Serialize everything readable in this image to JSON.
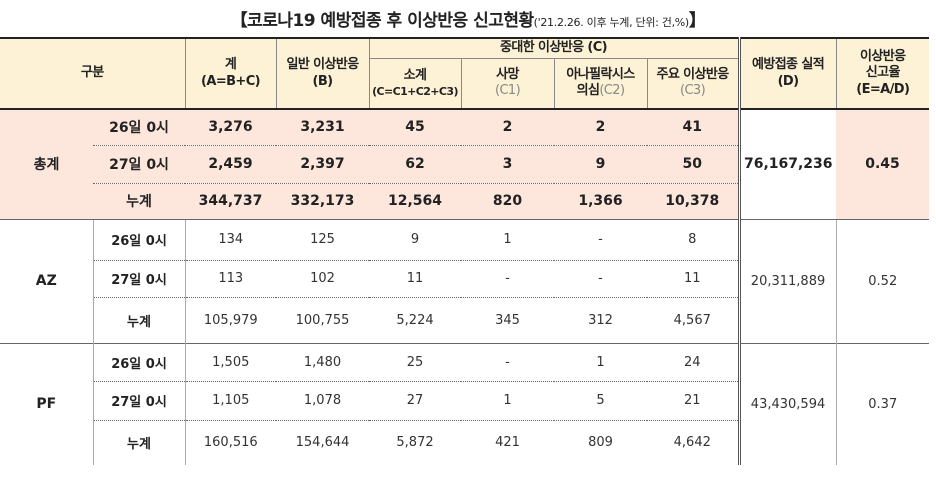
{
  "title": {
    "main": "【코로나19 예방접종 후 이상반응 신고현황",
    "sub": "('21.2.26. 이후 누계, 단위: 건,%)",
    "close": "】"
  },
  "headers": {
    "category": "구분",
    "total": "계",
    "total_sub": "(A=B+C)",
    "general": "일반 이상반응",
    "general_sub": "(B)",
    "serious": "중대한 이상반응 (C)",
    "subtotal": "소계",
    "subtotal_formula": "(C=C1+C2+C3)",
    "death": "사망",
    "death_sub": "(C1)",
    "anaphylaxis": "아나필락시스",
    "anaphylaxis_line2": "의심",
    "anaphylaxis_sub": "(C2)",
    "major": "주요 이상반응",
    "major_sub": "(C3)",
    "vaccinations": "예방접종 실적",
    "vaccinations_sub": "(D)",
    "rate": "이상반응",
    "rate_line2": "신고율",
    "rate_sub": "(E=A/D)"
  },
  "groups": [
    {
      "name": "총계",
      "vaccinations": "76,167,236",
      "rate": "0.45",
      "rows": [
        {
          "label": "26일 0시",
          "total": "3,276",
          "general": "3,231",
          "subtotal": "45",
          "death": "2",
          "anaphylaxis": "2",
          "major": "41"
        },
        {
          "label": "27일 0시",
          "total": "2,459",
          "general": "2,397",
          "subtotal": "62",
          "death": "3",
          "anaphylaxis": "9",
          "major": "50"
        },
        {
          "label": "누계",
          "total": "344,737",
          "general": "332,173",
          "subtotal": "12,564",
          "death": "820",
          "anaphylaxis": "1,366",
          "major": "10,378"
        }
      ]
    },
    {
      "name": "AZ",
      "vaccinations": "20,311,889",
      "rate": "0.52",
      "rows": [
        {
          "label": "26일 0시",
          "total": "134",
          "general": "125",
          "subtotal": "9",
          "death": "1",
          "anaphylaxis": "-",
          "major": "8"
        },
        {
          "label": "27일 0시",
          "total": "113",
          "general": "102",
          "subtotal": "11",
          "death": "-",
          "anaphylaxis": "-",
          "major": "11"
        },
        {
          "label": "누계",
          "total": "105,979",
          "general": "100,755",
          "subtotal": "5,224",
          "death": "345",
          "anaphylaxis": "312",
          "major": "4,567"
        }
      ]
    },
    {
      "name": "PF",
      "vaccinations": "43,430,594",
      "rate": "0.37",
      "rows": [
        {
          "label": "26일 0시",
          "total": "1,505",
          "general": "1,480",
          "subtotal": "25",
          "death": "-",
          "anaphylaxis": "1",
          "major": "24"
        },
        {
          "label": "27일 0시",
          "total": "1,105",
          "general": "1,078",
          "subtotal": "27",
          "death": "1",
          "anaphylaxis": "5",
          "major": "21"
        },
        {
          "label": "누계",
          "total": "160,516",
          "general": "154,644",
          "subtotal": "5,872",
          "death": "421",
          "anaphylaxis": "809",
          "major": "4,642"
        }
      ]
    }
  ]
}
